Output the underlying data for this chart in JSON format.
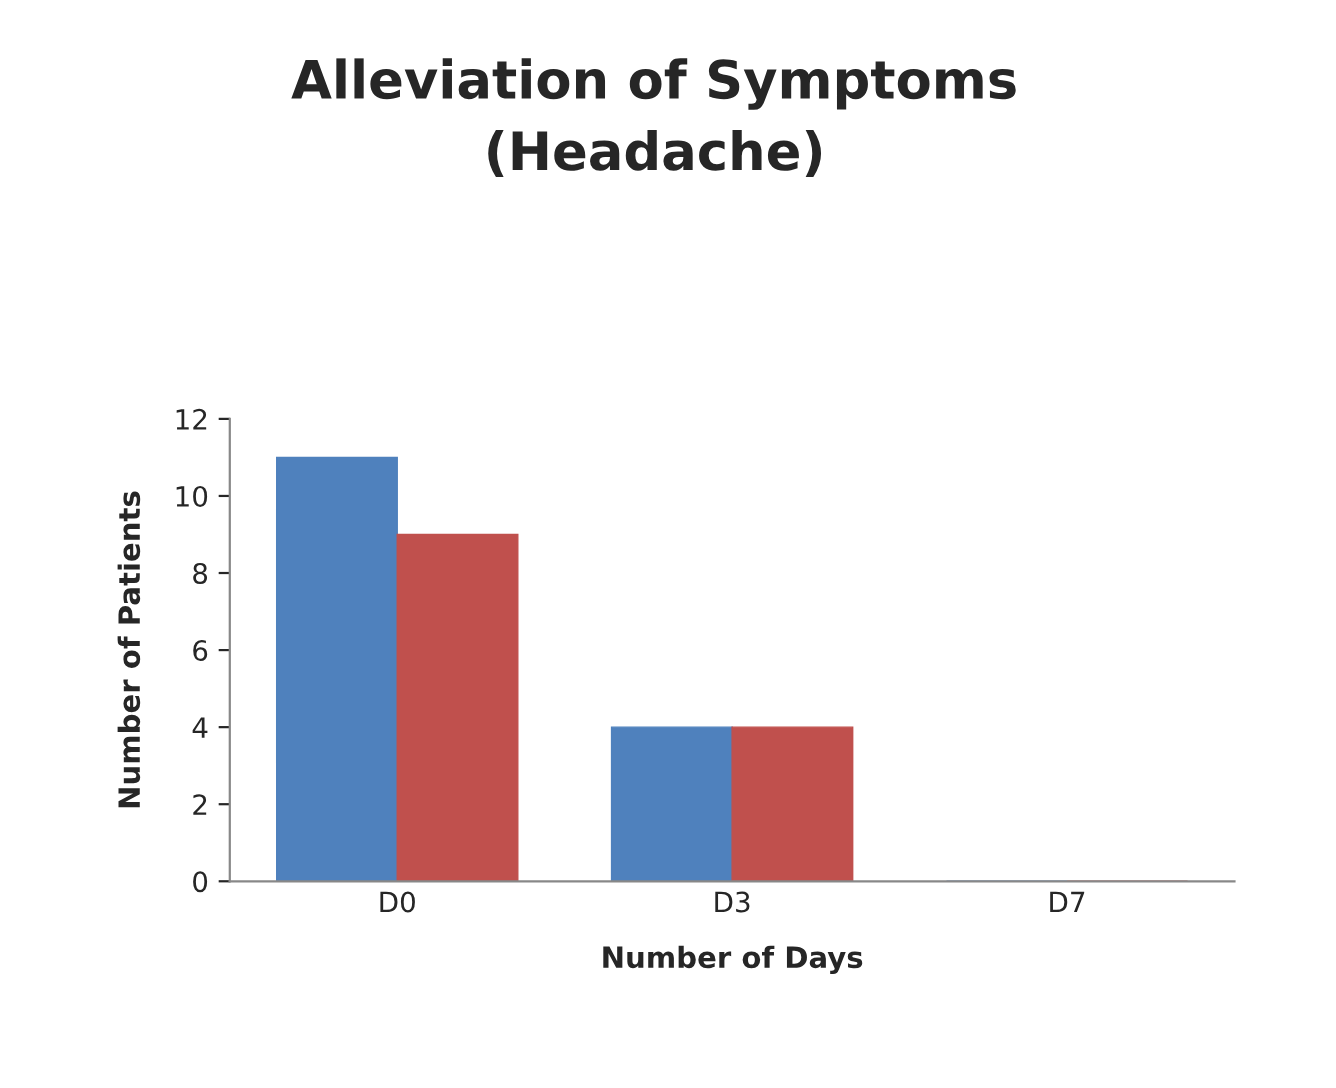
{
  "chart_data": {
    "type": "bar",
    "title": "Alleviation of Symptoms\n(Headache)",
    "xlabel": "Number of Days",
    "ylabel": "Number of Patients",
    "categories": [
      "D0",
      "D3",
      "D7"
    ],
    "series": [
      {
        "color": "#4f81bd",
        "values": [
          11,
          4,
          0
        ]
      },
      {
        "color": "#c0504d",
        "values": [
          9,
          4,
          0
        ]
      }
    ],
    "ylim": [
      0,
      12
    ],
    "yticks": [
      0,
      2,
      4,
      6,
      8,
      10,
      12
    ],
    "grid": false
  }
}
